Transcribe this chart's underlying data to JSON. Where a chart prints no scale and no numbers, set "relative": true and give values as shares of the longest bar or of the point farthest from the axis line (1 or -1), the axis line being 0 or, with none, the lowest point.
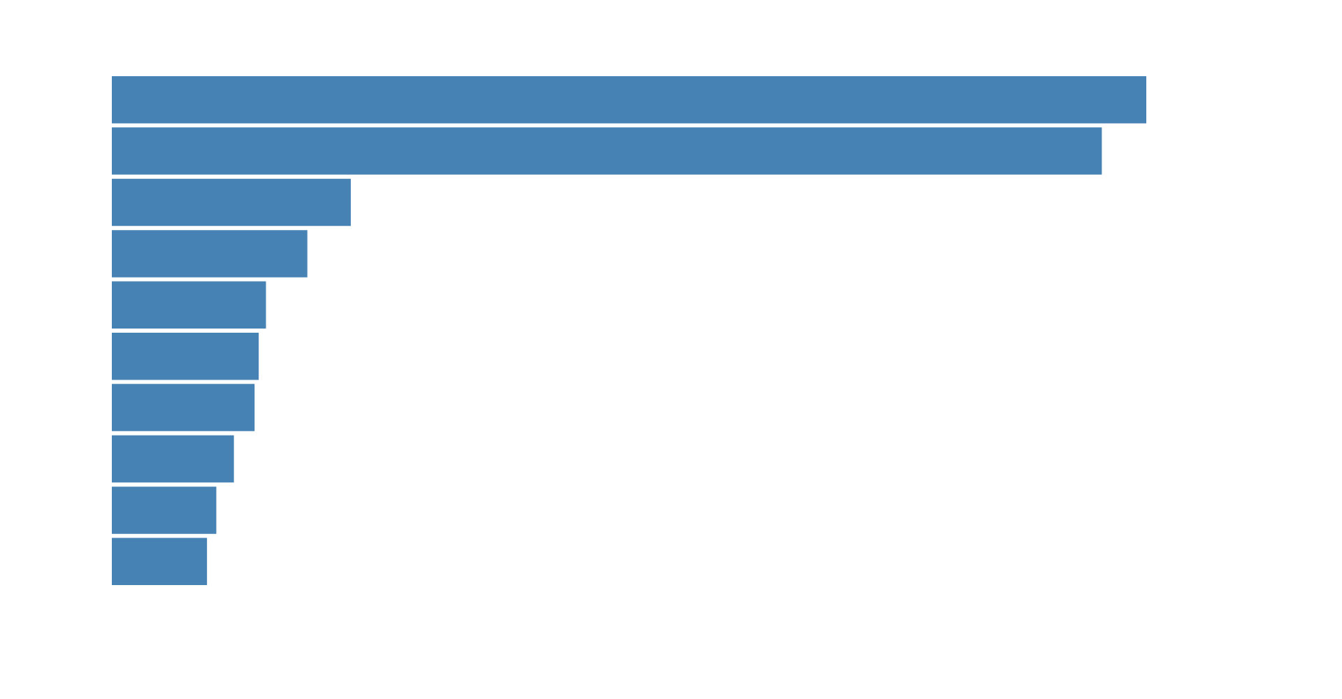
{
  "chart_data": {
    "type": "bar",
    "orientation": "horizontal",
    "relative": true,
    "categories": [
      null,
      null,
      null,
      null,
      null,
      null,
      null,
      null,
      null,
      null
    ],
    "values": [
      1,
      0.957,
      0.231,
      0.189,
      0.149,
      0.142,
      0.138,
      0.118,
      0.101,
      0.092
    ],
    "color": "#4682b4",
    "legend": false
  }
}
